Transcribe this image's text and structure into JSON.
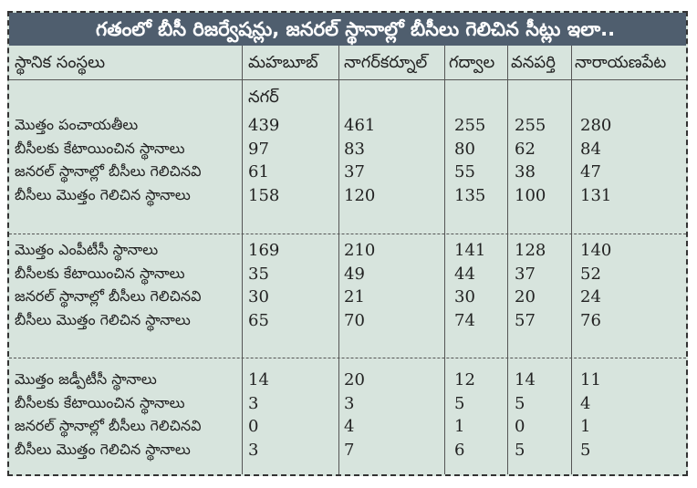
{
  "title": "గతంలో బీసీ రిజర్వేషన్లు, జనరల్ స్థానాల్లో బీసీలు గెలిచిన సీట్లు ఇలా..",
  "headers": [
    "స్థానిక సంస్థలు",
    "మహబూబ్",
    "నాగర్‌కర్నూల్",
    "గద్వాల",
    "వనపర్తి",
    "నారాయణపేట"
  ],
  "header_sub": "నగర్",
  "sections": [
    {
      "rows": [
        {
          "label": "మొత్తం పంచాయతీలు",
          "values": [
            "439",
            "461",
            "255",
            "255",
            "280"
          ]
        },
        {
          "label": "బీసీలకు కేటాయించిన స్థానాలు",
          "values": [
            "97",
            "83",
            "80",
            "62",
            "84"
          ]
        },
        {
          "label": "జనరల్ స్థానాల్లో బీసీలు గెలిచినవి",
          "values": [
            "61",
            "37",
            "55",
            "38",
            "47"
          ]
        },
        {
          "label": "బీసీలు మొత్తం గెలిచిన స్థానాలు",
          "values": [
            "158",
            "120",
            "135",
            "100",
            "131"
          ]
        }
      ]
    },
    {
      "rows": [
        {
          "label": "మొత్తం ఎంపీటీసీ స్థానాలు",
          "values": [
            "169",
            "210",
            "141",
            "128",
            "140"
          ]
        },
        {
          "label": "బీసీలకు కేటాయించిన స్థానాలు",
          "values": [
            "35",
            "49",
            "44",
            "37",
            "52"
          ]
        },
        {
          "label": "జనరల్ స్థానాల్లో బీసీలు గెలిచినవి",
          "values": [
            "30",
            "21",
            "30",
            "20",
            "24"
          ]
        },
        {
          "label": "బీసీలు మొత్తం గెలిచిన స్థానాలు",
          "values": [
            "65",
            "70",
            "74",
            "57",
            "76"
          ]
        }
      ]
    },
    {
      "rows": [
        {
          "label": "మొత్తం జడ్పీటీసీ స్థానాలు",
          "values": [
            "14",
            "20",
            "12",
            "14",
            "11"
          ]
        },
        {
          "label": "బీసీలకు కేటాయించిన స్థానాలు",
          "values": [
            "3",
            "3",
            "5",
            "5",
            "4"
          ]
        },
        {
          "label": "జనరల్ స్థానాల్లో బీసీలు గెలిచినవి",
          "values": [
            "0",
            "4",
            "1",
            "0",
            "1"
          ]
        },
        {
          "label": "బీసీలు మొత్తం గెలిచిన స్థానాలు",
          "values": [
            "3",
            "7",
            "6",
            "5",
            "5"
          ]
        }
      ]
    }
  ]
}
